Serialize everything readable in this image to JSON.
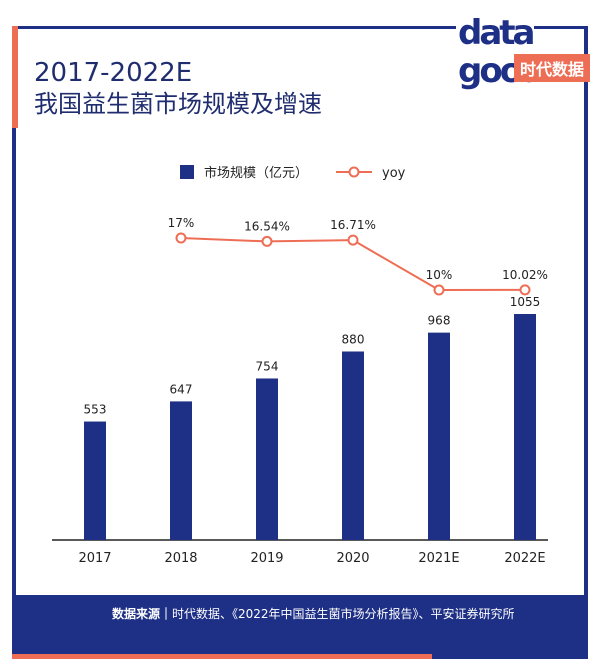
{
  "title": {
    "line1": "2017-2022E",
    "line2": "我国益生菌市场规模及增速"
  },
  "logo": {
    "word_top": "data",
    "word_bottom": "good",
    "brand": "时代数据"
  },
  "colors": {
    "navy": "#1e2f86",
    "accent": "#ee6d55"
  },
  "chart_data": {
    "type": "bar",
    "categories": [
      "2017",
      "2018",
      "2019",
      "2020",
      "2021E",
      "2022E"
    ],
    "series": [
      {
        "name": "市场规模（亿元）",
        "type": "bar",
        "values": [
          553,
          647,
          754,
          880,
          968,
          1055
        ],
        "labels": [
          "553",
          "647",
          "754",
          "880",
          "968",
          "1055"
        ],
        "color": "#1e2f86"
      },
      {
        "name": "yoy",
        "type": "line",
        "values": [
          null,
          17,
          16.54,
          16.71,
          10,
          10.02
        ],
        "labels": [
          "",
          "17%",
          "16.54%",
          "16.71%",
          "10%",
          "10.02%"
        ],
        "color": "#ee6d55"
      }
    ],
    "legend_position": "top-center",
    "grid": false
  },
  "footer": {
    "source_label": "数据来源｜",
    "source_text": "时代数据、《2022年中国益生菌市场分析报告》、平安证券研究所"
  }
}
